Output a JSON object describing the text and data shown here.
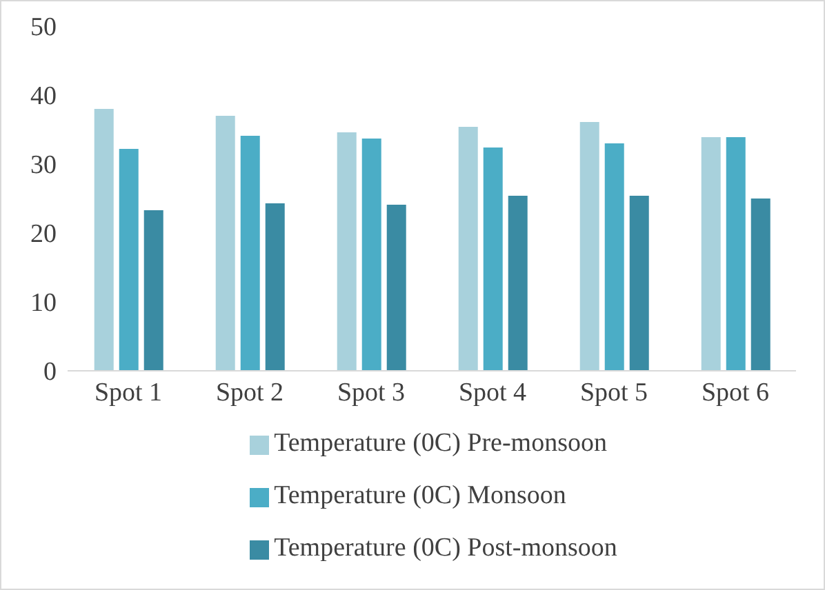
{
  "chart_data": {
    "type": "bar",
    "categories": [
      "Spot 1",
      "Spot 2",
      "Spot 3",
      "Spot 4",
      "Spot 5",
      "Spot 6"
    ],
    "series": [
      {
        "name": "Temperature (0C) Pre-monsoon",
        "color": "#a8d1dc",
        "values": [
          38,
          37,
          34.6,
          35.4,
          36.1,
          33.9
        ]
      },
      {
        "name": "Temperature (0C) Monsoon",
        "color": "#4badc6",
        "values": [
          32.2,
          34.1,
          33.7,
          32.4,
          33,
          33.9
        ]
      },
      {
        "name": "Temperature (0C) Post-monsoon",
        "color": "#3a8ba3",
        "values": [
          23.3,
          24.3,
          24.1,
          25.4,
          25.4,
          25
        ]
      }
    ],
    "ylim": [
      0,
      50
    ],
    "yticks": [
      0,
      10,
      20,
      30,
      40,
      50
    ],
    "grid": false,
    "legend": "bottom"
  }
}
